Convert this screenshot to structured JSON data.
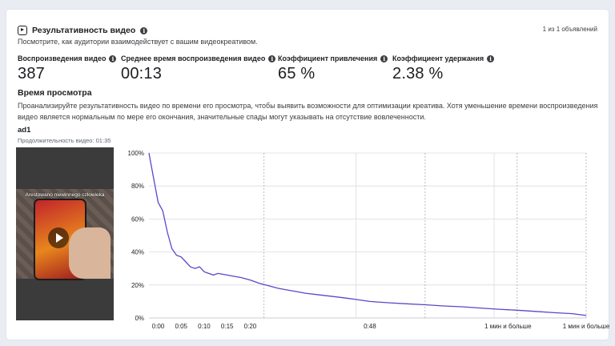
{
  "header": {
    "title": "Результативность видео",
    "subtitle": "Посмотрите, как аудитории взаимодействует с вашим видеокреативом.",
    "pager": "1 из 1 объявлений"
  },
  "metrics": [
    {
      "label": "Воспроизведения видео",
      "value": "387"
    },
    {
      "label": "Среднее время воспроизведения видео",
      "value": "00:13"
    },
    {
      "label": "Коэффициент привлечения",
      "value": "65 %"
    },
    {
      "label": "Коэффициент удержания",
      "value": "2.38 %"
    }
  ],
  "watch_time": {
    "title": "Время просмотра",
    "description": "Проанализируйте результативность видео по времени его просмотра, чтобы выявить возможности для оптимизации креатива. Хотя уменьшение времени воспроизведения видео является нормальным по мере его окончания, значительные спады могут указывать на отсутствие вовлеченности."
  },
  "ad": {
    "name": "ad1",
    "duration": "Продолжительность видео: 01:35",
    "thumbnail_caption": "Arestowano niewinnego człowieka"
  },
  "icons": {
    "title_icon": "video-reel-icon",
    "info": "info-icon",
    "play": "play-icon"
  },
  "colors": {
    "line": "#5b47c9",
    "grid": "#d9dce1"
  },
  "chart_data": {
    "type": "line",
    "x_tick_labels": [
      "0:00",
      "0:05",
      "0:10",
      "0:15",
      "0:20",
      "0:48",
      "1 мин и больше",
      "1 мин и больше"
    ],
    "y_tick_labels": [
      "100%",
      "80%",
      "60%",
      "40%",
      "20%",
      "0%"
    ],
    "ylim": [
      0,
      100
    ],
    "series": [
      {
        "x": [
          0,
          1,
          2,
          3,
          4,
          5,
          6,
          7,
          8,
          9,
          10,
          11,
          12,
          13,
          14,
          15,
          16,
          18,
          20,
          22,
          24,
          26,
          28,
          30,
          32,
          34,
          37,
          40,
          43,
          45,
          48,
          52,
          56,
          60,
          64,
          68,
          72,
          76,
          80,
          84,
          88,
          92,
          95
        ],
        "y": [
          100,
          85,
          70,
          65,
          52,
          42,
          38,
          37,
          34,
          31,
          30,
          31,
          28,
          27,
          26,
          27,
          26.5,
          25.5,
          24.5,
          23,
          21,
          19.5,
          18,
          17,
          16,
          15,
          14,
          13,
          12,
          11.2,
          10,
          9.2,
          8.6,
          8,
          7.3,
          6.8,
          6,
          5.3,
          4.7,
          4,
          3.2,
          2.6,
          1.5
        ]
      }
    ]
  }
}
